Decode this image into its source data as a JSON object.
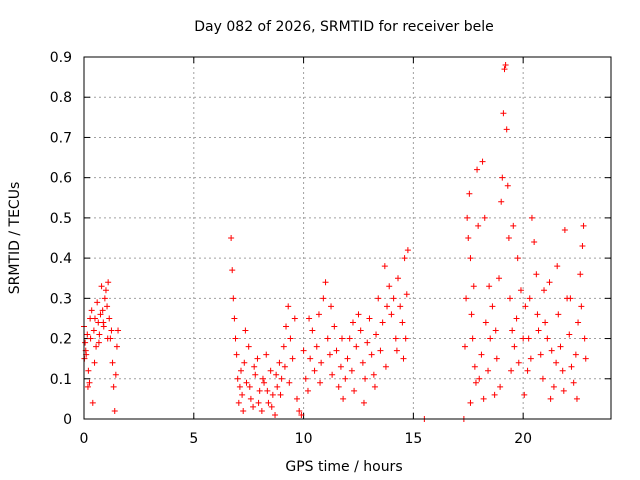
{
  "chart_data": {
    "type": "scatter",
    "title": "Day 082 of 2026, SRMTID for receiver bele",
    "xlabel": "GPS time / hours",
    "ylabel": "SRMTID / TECUs",
    "xlim": [
      0,
      24
    ],
    "ylim": [
      0,
      0.9
    ],
    "xticks": [
      0,
      5,
      10,
      15,
      20
    ],
    "xtick_labels": [
      "0",
      "5",
      "10",
      "15",
      "20"
    ],
    "yticks": [
      0,
      0.1,
      0.2,
      0.3,
      0.4,
      0.5,
      0.6,
      0.7,
      0.8,
      0.9
    ],
    "ytick_labels": [
      "0",
      "0.1",
      "0.2",
      "0.3",
      "0.4",
      "0.5",
      "0.6",
      "0.7",
      "0.8",
      "0.9"
    ],
    "grid": true,
    "marker": "+",
    "color": "#ff0000",
    "series": [
      {
        "name": "SRMTID",
        "points": [
          [
            0.0,
            0.23
          ],
          [
            0.05,
            0.19
          ],
          [
            0.1,
            0.16
          ],
          [
            0.15,
            0.21
          ],
          [
            0.2,
            0.12
          ],
          [
            0.25,
            0.09
          ],
          [
            0.3,
            0.2
          ],
          [
            0.35,
            0.27
          ],
          [
            0.4,
            0.04
          ],
          [
            0.45,
            0.22
          ],
          [
            0.5,
            0.25
          ],
          [
            0.55,
            0.18
          ],
          [
            0.6,
            0.29
          ],
          [
            0.65,
            0.24
          ],
          [
            0.7,
            0.21
          ],
          [
            0.75,
            0.26
          ],
          [
            0.8,
            0.33
          ],
          [
            0.85,
            0.27
          ],
          [
            0.9,
            0.23
          ],
          [
            0.95,
            0.3
          ],
          [
            1.0,
            0.32
          ],
          [
            1.05,
            0.28
          ],
          [
            1.1,
            0.34
          ],
          [
            1.15,
            0.25
          ],
          [
            1.2,
            0.2
          ],
          [
            1.25,
            0.22
          ],
          [
            1.3,
            0.14
          ],
          [
            1.35,
            0.08
          ],
          [
            1.4,
            0.02
          ],
          [
            1.45,
            0.11
          ],
          [
            1.5,
            0.18
          ],
          [
            1.55,
            0.22
          ],
          [
            0.02,
            0.15
          ],
          [
            0.08,
            0.17
          ],
          [
            0.18,
            0.08
          ],
          [
            0.28,
            0.25
          ],
          [
            0.48,
            0.14
          ],
          [
            0.68,
            0.19
          ],
          [
            0.88,
            0.24
          ],
          [
            1.08,
            0.2
          ],
          [
            6.7,
            0.45
          ],
          [
            6.75,
            0.37
          ],
          [
            6.8,
            0.3
          ],
          [
            6.85,
            0.25
          ],
          [
            6.9,
            0.2
          ],
          [
            6.95,
            0.16
          ],
          [
            7.0,
            0.1
          ],
          [
            7.05,
            0.04
          ],
          [
            7.1,
            0.08
          ],
          [
            7.15,
            0.12
          ],
          [
            7.2,
            0.06
          ],
          [
            7.25,
            0.02
          ],
          [
            7.3,
            0.14
          ],
          [
            7.4,
            0.09
          ],
          [
            7.5,
            0.18
          ],
          [
            7.6,
            0.05
          ],
          [
            7.7,
            0.03
          ],
          [
            7.8,
            0.11
          ],
          [
            7.9,
            0.15
          ],
          [
            8.0,
            0.07
          ],
          [
            8.1,
            0.02
          ],
          [
            8.2,
            0.09
          ],
          [
            8.3,
            0.16
          ],
          [
            8.4,
            0.04
          ],
          [
            8.5,
            0.12
          ],
          [
            8.6,
            0.06
          ],
          [
            8.7,
            0.01
          ],
          [
            8.8,
            0.08
          ],
          [
            8.9,
            0.14
          ],
          [
            9.0,
            0.1
          ],
          [
            9.1,
            0.18
          ],
          [
            9.2,
            0.23
          ],
          [
            9.3,
            0.28
          ],
          [
            9.4,
            0.2
          ],
          [
            9.5,
            0.15
          ],
          [
            9.6,
            0.25
          ],
          [
            9.7,
            0.05
          ],
          [
            9.8,
            0.02
          ],
          [
            9.9,
            0.01
          ],
          [
            7.35,
            0.22
          ],
          [
            7.55,
            0.08
          ],
          [
            7.75,
            0.13
          ],
          [
            7.95,
            0.04
          ],
          [
            8.15,
            0.1
          ],
          [
            8.35,
            0.07
          ],
          [
            8.55,
            0.03
          ],
          [
            8.75,
            0.11
          ],
          [
            8.95,
            0.06
          ],
          [
            9.15,
            0.13
          ],
          [
            9.35,
            0.09
          ],
          [
            10.0,
            0.17
          ],
          [
            10.1,
            0.1
          ],
          [
            10.2,
            0.07
          ],
          [
            10.3,
            0.15
          ],
          [
            10.4,
            0.22
          ],
          [
            10.5,
            0.12
          ],
          [
            10.6,
            0.18
          ],
          [
            10.7,
            0.26
          ],
          [
            10.8,
            0.14
          ],
          [
            10.9,
            0.3
          ],
          [
            11.0,
            0.34
          ],
          [
            11.1,
            0.2
          ],
          [
            11.2,
            0.16
          ],
          [
            11.3,
            0.11
          ],
          [
            11.4,
            0.23
          ],
          [
            11.5,
            0.17
          ],
          [
            11.6,
            0.08
          ],
          [
            11.7,
            0.13
          ],
          [
            11.8,
            0.05
          ],
          [
            11.9,
            0.1
          ],
          [
            12.0,
            0.15
          ],
          [
            12.1,
            0.2
          ],
          [
            12.2,
            0.12
          ],
          [
            12.3,
            0.07
          ],
          [
            12.4,
            0.18
          ],
          [
            12.5,
            0.26
          ],
          [
            12.6,
            0.22
          ],
          [
            12.7,
            0.14
          ],
          [
            12.8,
            0.1
          ],
          [
            12.9,
            0.19
          ],
          [
            13.0,
            0.25
          ],
          [
            13.1,
            0.16
          ],
          [
            13.2,
            0.11
          ],
          [
            13.3,
            0.21
          ],
          [
            13.4,
            0.3
          ],
          [
            13.5,
            0.17
          ],
          [
            13.6,
            0.24
          ],
          [
            13.7,
            0.38
          ],
          [
            13.8,
            0.28
          ],
          [
            13.9,
            0.33
          ],
          [
            14.0,
            0.26
          ],
          [
            14.1,
            0.3
          ],
          [
            14.2,
            0.2
          ],
          [
            14.3,
            0.35
          ],
          [
            14.4,
            0.28
          ],
          [
            14.5,
            0.24
          ],
          [
            14.6,
            0.4
          ],
          [
            14.7,
            0.31
          ],
          [
            14.75,
            0.42
          ],
          [
            14.55,
            0.15
          ],
          [
            10.25,
            0.25
          ],
          [
            10.75,
            0.09
          ],
          [
            11.25,
            0.28
          ],
          [
            11.75,
            0.2
          ],
          [
            12.25,
            0.24
          ],
          [
            12.75,
            0.04
          ],
          [
            13.25,
            0.08
          ],
          [
            13.75,
            0.13
          ],
          [
            14.25,
            0.17
          ],
          [
            14.65,
            0.2
          ],
          [
            15.5,
            0.0
          ],
          [
            17.3,
            0.0
          ],
          [
            17.35,
            0.18
          ],
          [
            17.4,
            0.3
          ],
          [
            17.45,
            0.5
          ],
          [
            17.5,
            0.45
          ],
          [
            17.55,
            0.56
          ],
          [
            17.6,
            0.4
          ],
          [
            17.65,
            0.26
          ],
          [
            17.7,
            0.2
          ],
          [
            17.75,
            0.33
          ],
          [
            17.8,
            0.13
          ],
          [
            17.85,
            0.09
          ],
          [
            17.9,
            0.62
          ],
          [
            17.95,
            0.48
          ],
          [
            18.0,
            0.1
          ],
          [
            18.1,
            0.16
          ],
          [
            18.2,
            0.05
          ],
          [
            18.3,
            0.24
          ],
          [
            18.4,
            0.12
          ],
          [
            18.5,
            0.2
          ],
          [
            18.6,
            0.28
          ],
          [
            18.7,
            0.06
          ],
          [
            18.8,
            0.15
          ],
          [
            18.9,
            0.35
          ],
          [
            19.0,
            0.54
          ],
          [
            19.05,
            0.6
          ],
          [
            19.1,
            0.76
          ],
          [
            19.15,
            0.87
          ],
          [
            19.2,
            0.88
          ],
          [
            19.25,
            0.72
          ],
          [
            19.3,
            0.58
          ],
          [
            19.35,
            0.45
          ],
          [
            19.4,
            0.3
          ],
          [
            19.5,
            0.22
          ],
          [
            19.6,
            0.18
          ],
          [
            19.7,
            0.25
          ],
          [
            19.8,
            0.14
          ],
          [
            19.9,
            0.32
          ],
          [
            20.0,
            0.2
          ],
          [
            20.1,
            0.28
          ],
          [
            20.2,
            0.12
          ],
          [
            20.3,
            0.3
          ],
          [
            20.4,
            0.5
          ],
          [
            20.5,
            0.44
          ],
          [
            20.6,
            0.36
          ],
          [
            20.7,
            0.22
          ],
          [
            20.8,
            0.16
          ],
          [
            20.9,
            0.1
          ],
          [
            21.0,
            0.24
          ],
          [
            21.1,
            0.2
          ],
          [
            21.2,
            0.34
          ],
          [
            21.3,
            0.17
          ],
          [
            21.4,
            0.08
          ],
          [
            21.5,
            0.14
          ],
          [
            21.6,
            0.26
          ],
          [
            21.7,
            0.18
          ],
          [
            21.8,
            0.12
          ],
          [
            21.9,
            0.47
          ],
          [
            22.0,
            0.3
          ],
          [
            22.1,
            0.21
          ],
          [
            22.2,
            0.13
          ],
          [
            22.3,
            0.09
          ],
          [
            22.4,
            0.16
          ],
          [
            22.5,
            0.24
          ],
          [
            22.6,
            0.36
          ],
          [
            22.7,
            0.43
          ],
          [
            22.75,
            0.48
          ],
          [
            22.8,
            0.2
          ],
          [
            22.85,
            0.15
          ],
          [
            18.15,
            0.64
          ],
          [
            18.45,
            0.33
          ],
          [
            18.95,
            0.08
          ],
          [
            19.45,
            0.12
          ],
          [
            19.75,
            0.4
          ],
          [
            20.05,
            0.06
          ],
          [
            20.35,
            0.15
          ],
          [
            20.65,
            0.26
          ],
          [
            20.95,
            0.32
          ],
          [
            21.25,
            0.05
          ],
          [
            21.55,
            0.38
          ],
          [
            21.85,
            0.07
          ],
          [
            22.15,
            0.3
          ],
          [
            22.45,
            0.05
          ],
          [
            22.65,
            0.28
          ],
          [
            17.6,
            0.04
          ],
          [
            18.25,
            0.5
          ],
          [
            18.75,
            0.22
          ],
          [
            19.55,
            0.48
          ],
          [
            20.25,
            0.2
          ]
        ]
      }
    ]
  }
}
